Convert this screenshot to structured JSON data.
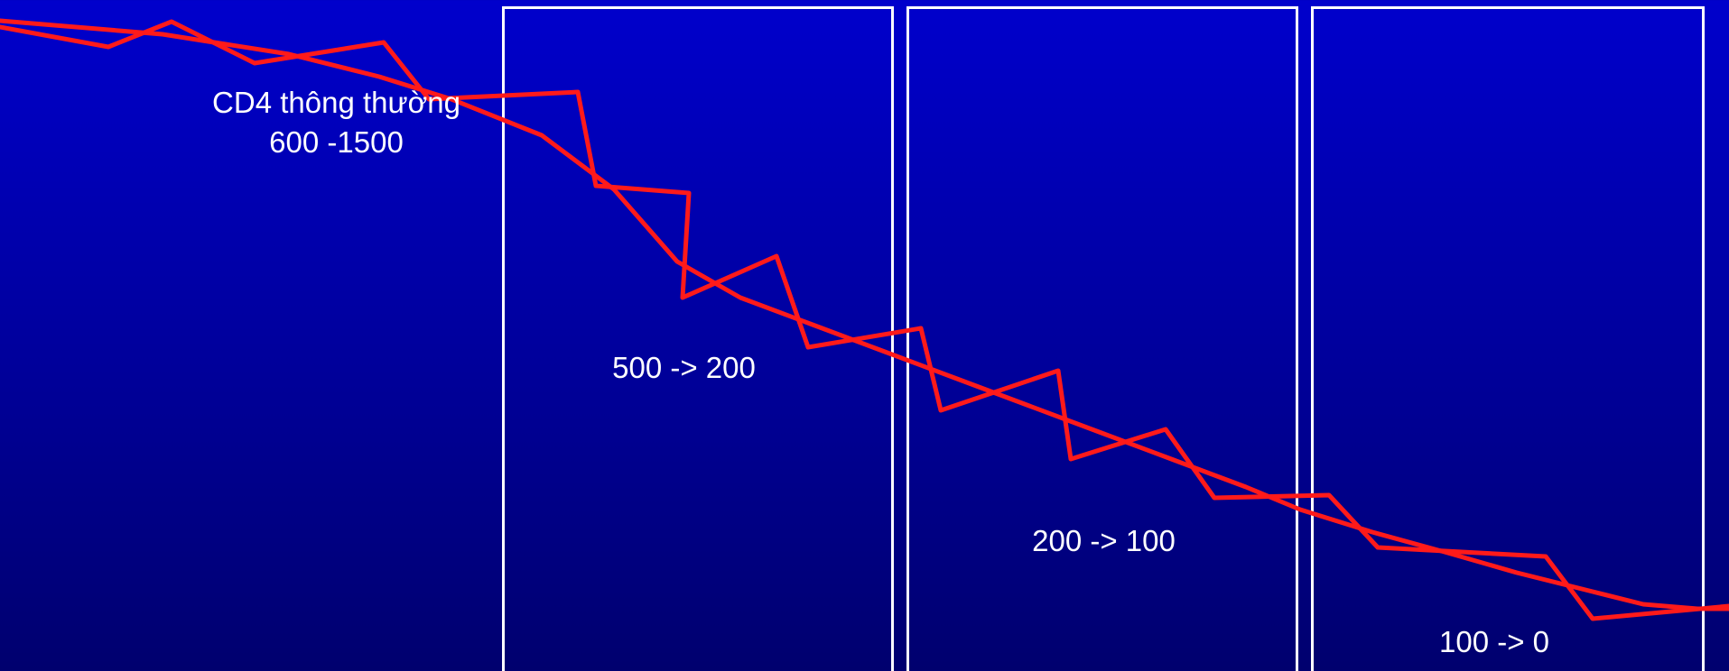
{
  "slide": {
    "stages": [
      {
        "label_line1": "CD4 thông thường",
        "label_line2": "600 -1500"
      },
      {
        "label": "500 -> 200"
      },
      {
        "label": "200 -> 100"
      },
      {
        "label": "100 -> 0"
      }
    ]
  },
  "colors": {
    "background_top": "#0000cc",
    "background_bottom": "#00006e",
    "curve": "#ff1a1a",
    "box_border": "#ffffff",
    "text": "#ffffff"
  }
}
